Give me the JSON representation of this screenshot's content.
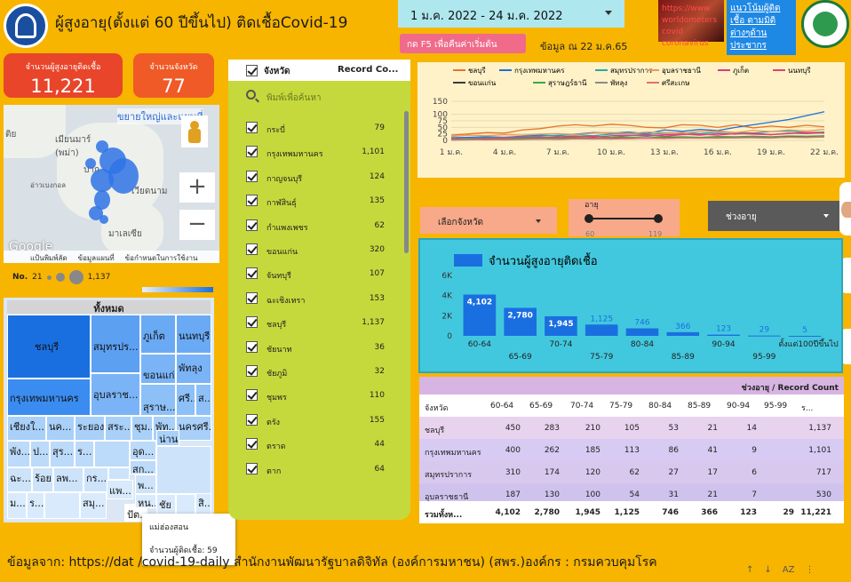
{
  "header": {
    "title": "ผู้สูงอายุ(ตั้งแต่ 60 ปีขึ้นไป) ติดเชื้อCovid-19",
    "date_range": "1 ม.ค. 2022 - 24 ม.ค. 2022",
    "refresh_button": "กด F5 เพื่อคืนค่าเริ่มต้น",
    "as_of": "ข้อมูล ณ 22 ม.ค.65",
    "policy_link": "แนวโน้มผู้ติดเชื้อ ตามมิติต่างๆด้านประชากร",
    "covid_image_text": "https://www worldometers covid coronavirus"
  },
  "kpis": [
    {
      "label": "จำนวนผู้สูงอายุติดเชื้อ",
      "value": "11,221",
      "color": "#e8452a"
    },
    {
      "label": "จำนวนจังหวัด",
      "value": "77",
      "color": "#ef5a27"
    }
  ],
  "map": {
    "expand_link": "ขยายใหญ่และแผนที่",
    "labels": [
      "เมียนมาร์ (พม่า)",
      "เวียดนาม",
      "ลาว",
      "มาเลเซีย",
      "ไทย",
      "ลาว",
      "ปาก",
      "อ่าวเบงกอล",
      "ติย"
    ],
    "footer": [
      "แป้นพิมพ์ลัด",
      "ข้อมูลแผนที่",
      "ข้อกำหนดในการใช้งาน"
    ],
    "legend_label": "No.",
    "legend_min": "21",
    "legend_max": "1,137",
    "google": "Google"
  },
  "treemap": {
    "title": "ทั้งหมด",
    "tiles": [
      "ชลบุรี",
      "กรุงเทพมหานคร",
      "สมุทรปร...",
      "ภูเก็ต",
      "นนทบุรี",
      "ขอนแก่...",
      "พัทลุง",
      "อุบลราช...",
      "สุราษ...",
      "ศรี...",
      "ส...",
      "เชียงใ...",
      "นค...",
      "ระยอง",
      "สระ...",
      "ชุม...",
      "พัท...",
      "นครศรี...",
      "พัง...",
      "ป...",
      "สุร...",
      "ร...",
      "อุด...",
      "สก...",
      "ฉะ...",
      "ลพ...",
      "ร้อย...",
      "กร...",
      "พ...",
      "ม...",
      "ร...",
      "สมุ...",
      "แพ...",
      "ปัต...",
      "สิ...",
      "หน...",
      "น่าน",
      "ชัย"
    ],
    "tooltip_name": "แม่ฮ่องสอน",
    "tooltip_value": "จำนวนผู้ติดเชื้อ: 59"
  },
  "province_filter": {
    "header_check": "จังหวัด",
    "header_count": "Record Co...",
    "search_placeholder": "พิมพ์เพื่อค้นหา",
    "items": [
      {
        "name": "กระบี่",
        "count": "79"
      },
      {
        "name": "กรุงเทพมหานคร",
        "count": "1,101"
      },
      {
        "name": "กาญจนบุรี",
        "count": "124"
      },
      {
        "name": "กาฬสินธุ์",
        "count": "135"
      },
      {
        "name": "กำแพงเพชร",
        "count": "62"
      },
      {
        "name": "ขอนแก่น",
        "count": "320"
      },
      {
        "name": "จันทบุรี",
        "count": "107"
      },
      {
        "name": "ฉะเชิงเทรา",
        "count": "153"
      },
      {
        "name": "ชลบุรี",
        "count": "1,137"
      },
      {
        "name": "ชัยนาท",
        "count": "36"
      },
      {
        "name": "ชัยภูมิ",
        "count": "32"
      },
      {
        "name": "ชุมพร",
        "count": "110"
      },
      {
        "name": "ตรัง",
        "count": "155"
      },
      {
        "name": "ตราด",
        "count": "44"
      },
      {
        "name": "ตาก",
        "count": "64"
      }
    ]
  },
  "controls": {
    "province_select": "เลือกจังหวัด",
    "age_label": "อายุ",
    "age_min": "60",
    "age_max": "119",
    "age_min_value": 60,
    "age_max_value": 119,
    "age_range_select": "ช่วงอายุ"
  },
  "line_chart": {
    "type": "line",
    "legend": [
      "ชลบุรี",
      "กรุงเทพมหานคร",
      "สมุทรปราการ",
      "อุบลราชธานี",
      "ภูเก็ต",
      "นนทบุรี",
      "ขอนแก่น",
      "สุราษฎร์ธานี",
      "พัทลุง",
      "ศรีสะเกษ"
    ],
    "colors": [
      "#e8742a",
      "#1e6fd9",
      "#2aa8a8",
      "#e89a5a",
      "#d83a8a",
      "#e04470",
      "#3a3a3a",
      "#3aa84a",
      "#8a8a8a",
      "#e07070"
    ],
    "x_ticks": [
      "1 ม.ค.",
      "4 ม.ค.",
      "7 ม.ค.",
      "10 ม.ค.",
      "13 ม.ค.",
      "16 ม.ค.",
      "19 ม.ค.",
      "22 ม.ค."
    ],
    "y_ticks": [
      "0",
      "25",
      "50",
      "75",
      "100",
      "150"
    ],
    "y_tick_values": [
      0,
      25,
      50,
      75,
      100,
      150
    ],
    "ylim": [
      0,
      150
    ],
    "series_values": [
      [
        20,
        25,
        30,
        28,
        40,
        45,
        55,
        60,
        55,
        62,
        58,
        50,
        48,
        60,
        58,
        50,
        60,
        48,
        55,
        50,
        58,
        52
      ],
      [
        10,
        12,
        14,
        12,
        16,
        20,
        18,
        24,
        30,
        28,
        32,
        26,
        40,
        35,
        42,
        38,
        50,
        60,
        70,
        80,
        95,
        110
      ],
      [
        5,
        8,
        10,
        12,
        14,
        16,
        20,
        22,
        18,
        24,
        26,
        22,
        28,
        30,
        26,
        32,
        30,
        28,
        34,
        36,
        30,
        32
      ],
      [
        15,
        20,
        18,
        22,
        20,
        24,
        26,
        22,
        28,
        30,
        26,
        32,
        30,
        28,
        34,
        36,
        30,
        38,
        34,
        40,
        36,
        42
      ],
      [
        5,
        6,
        8,
        10,
        12,
        10,
        14,
        16,
        12,
        18,
        20,
        16,
        22,
        24,
        20,
        26,
        24,
        28,
        22,
        26,
        30,
        28
      ],
      [
        4,
        6,
        8,
        6,
        10,
        12,
        10,
        14,
        16,
        12,
        18,
        20,
        16,
        22,
        24,
        20,
        26,
        24,
        22,
        28,
        26,
        30
      ],
      [
        2,
        3,
        4,
        5,
        6,
        5,
        7,
        8,
        6,
        9,
        10,
        8,
        11,
        12,
        10,
        13,
        12,
        14,
        12,
        15,
        14,
        16
      ],
      [
        3,
        5,
        4,
        6,
        8,
        7,
        9,
        10,
        8,
        11,
        12,
        10,
        13,
        14,
        12,
        15,
        14,
        16,
        14,
        17,
        16,
        18
      ],
      [
        1,
        2,
        3,
        2,
        4,
        5,
        4,
        6,
        7,
        5,
        8,
        9,
        7,
        10,
        9,
        8,
        11,
        10,
        9,
        12,
        11,
        13
      ],
      [
        2,
        3,
        2,
        4,
        3,
        5,
        4,
        6,
        5,
        7,
        6,
        8,
        7,
        9,
        8,
        10,
        9,
        11,
        10,
        12,
        11,
        14
      ]
    ]
  },
  "chart_data": {
    "type": "bar",
    "title": "จำนวนผู้สูงอายุติดเชื้อ",
    "categories": [
      "60-64",
      "65-69",
      "70-74",
      "75-79",
      "80-84",
      "85-89",
      "90-94",
      "95-99",
      "ตั้งแต่100ปีขึ้นไป"
    ],
    "values": [
      4102,
      2780,
      1945,
      1125,
      746,
      366,
      123,
      29,
      5
    ],
    "value_labels": [
      "4,102",
      "2,780",
      "1,945",
      "1,125",
      "746",
      "366",
      "123",
      "29",
      "5"
    ],
    "y_ticks": [
      "0",
      "2K",
      "4K",
      "6K"
    ],
    "y_tick_values": [
      0,
      2000,
      4000,
      6000
    ],
    "ylim": [
      0,
      6000
    ],
    "color": "#1a6fe0"
  },
  "pivot_table": {
    "header": "ช่วงอายุ / Record Count",
    "columns": [
      "จังหวัด",
      "60-64",
      "65-69",
      "70-74",
      "75-79",
      "80-84",
      "85-89",
      "90-94",
      "95-99",
      "ร..."
    ],
    "rows": [
      {
        "name": "ชลบุรี",
        "cells": [
          "450",
          "283",
          "210",
          "105",
          "53",
          "21",
          "14",
          "",
          "1,137"
        ]
      },
      {
        "name": "กรุงเทพมหานคร",
        "cells": [
          "400",
          "262",
          "185",
          "113",
          "86",
          "41",
          "9",
          "",
          "1,101"
        ]
      },
      {
        "name": "สมุทรปราการ",
        "cells": [
          "310",
          "174",
          "120",
          "62",
          "27",
          "17",
          "6",
          "",
          "717"
        ]
      },
      {
        "name": "อุบลราชธานี",
        "cells": [
          "187",
          "130",
          "100",
          "54",
          "31",
          "21",
          "7",
          "",
          "530"
        ]
      }
    ],
    "total": {
      "name": "รวมทั้งห...",
      "cells": [
        "4,102",
        "2,780",
        "1,945",
        "1,125",
        "746",
        "366",
        "123",
        "29",
        "11,221"
      ]
    }
  },
  "footer": {
    "source": "ข้อมูลจาก: https://dat                              /covid-19-daily สำนักงานพัฒนารัฐบาลดิจิทัล (องค์การมหาชน) (สพร.)องค์กร : กรมควบคุมโรค"
  }
}
